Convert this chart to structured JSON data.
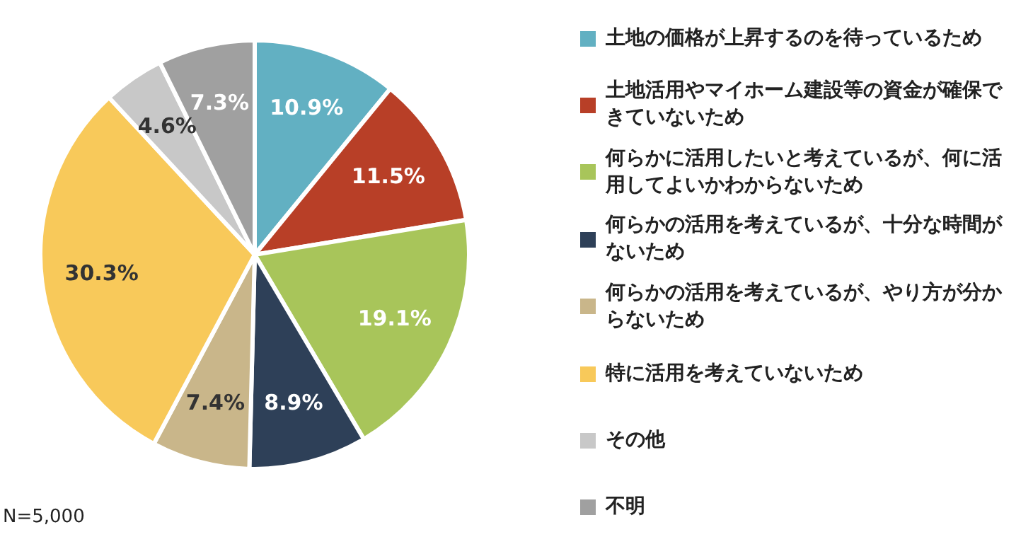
{
  "chart_data": {
    "type": "pie",
    "categories": [
      "土地の価格が上昇するのを待っているため",
      "土地活用やマイホーム建設等の資金が確保できていないため",
      "何らかに活用したいと考えているが、何に活用してよいかわからないため",
      "何らかの活用を考えているが、十分な時間がないため",
      "何らかの活用を考えているが、やり方が分からないため",
      "特に活用を考えていないため",
      "その他",
      "不明"
    ],
    "values": [
      10.9,
      11.5,
      19.1,
      8.9,
      7.4,
      30.3,
      4.6,
      7.3
    ],
    "colors": [
      "#62b0c2",
      "#b83f27",
      "#a8c55a",
      "#2e4058",
      "#c9b68a",
      "#f8c95a",
      "#c8c8c8",
      "#a0a0a0"
    ],
    "value_labels": [
      "10.9%",
      "11.5%",
      "19.1%",
      "8.9%",
      "7.4%",
      "30.3%",
      "4.6%",
      "7.3%"
    ],
    "legend": "right",
    "annotations": [
      "N=5,000"
    ]
  }
}
